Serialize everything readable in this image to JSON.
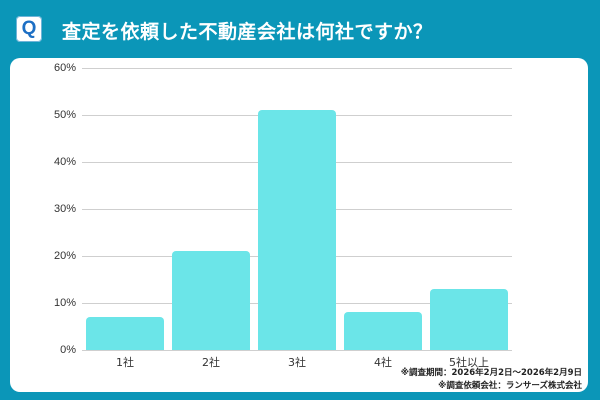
{
  "header": {
    "icon": "Q",
    "title": "査定を依頼した不動産会社は何社ですか？"
  },
  "colors": {
    "background": "#0b96b8",
    "card": "#ffffff",
    "bar": "#6be5e8",
    "gridline": "#cfcfcf"
  },
  "notes": {
    "period": "※調査期間：2026年2月2日〜2026年2月9日",
    "client": "※調査依頼会社：ランサーズ株式会社"
  },
  "chart_data": {
    "type": "bar",
    "title": "査定を依頼した不動産会社は何社ですか？",
    "categories": [
      "1社",
      "2社",
      "3社",
      "4社",
      "5社以上"
    ],
    "values": [
      7,
      21,
      51,
      8,
      13
    ],
    "xlabel": "",
    "ylabel": "",
    "ylim": [
      0,
      60
    ],
    "yticks": [
      "0%",
      "10%",
      "20%",
      "30%",
      "40%",
      "50%",
      "60%"
    ],
    "grid": true,
    "legend": "none",
    "unit": "%"
  }
}
